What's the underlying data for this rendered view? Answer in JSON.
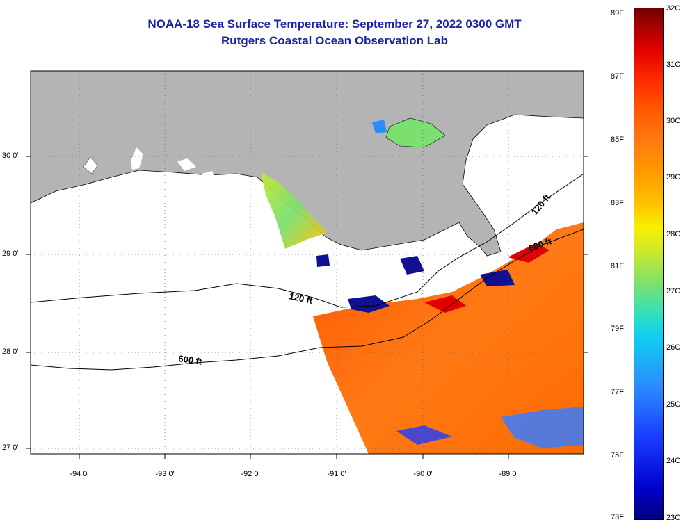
{
  "title": {
    "line1": "NOAA-18 Sea Surface Temperature:  September 27, 2022 0300 GMT",
    "line2": "Rutgers Coastal Ocean Observation Lab"
  },
  "map": {
    "lat_labels": [
      "30 0'",
      "29 0'",
      "28 0'",
      "27 0'"
    ],
    "lon_labels": [
      "-94 0'",
      "-93 0'",
      "-92 0'",
      "-91 0'",
      "-90 0'",
      "-89 0'"
    ],
    "contour_labels": [
      "120 ft",
      "120 ft",
      "600 ft",
      "600 ft"
    ],
    "colors": {
      "land": "#b4b4b4",
      "cloud": "#ffffff",
      "warm_water": "#ff6a10",
      "title": "#1a23a8"
    }
  },
  "colorbar": {
    "fahrenheit_labels": [
      "89F",
      "87F",
      "85F",
      "83F",
      "81F",
      "79F",
      "77F",
      "75F",
      "73F"
    ],
    "celsius_labels": [
      "32C",
      "31C",
      "30C",
      "29C",
      "28C",
      "27C",
      "26C",
      "25C",
      "24C",
      "23C"
    ]
  }
}
